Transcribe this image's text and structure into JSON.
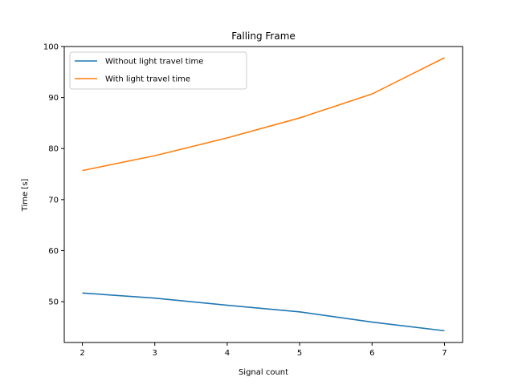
{
  "chart_data": {
    "type": "line",
    "title": "Falling Frame",
    "xlabel": "Signal count",
    "ylabel": "Time [s]",
    "x": [
      2,
      3,
      4,
      5,
      6,
      7
    ],
    "xticks": [
      2,
      3,
      4,
      5,
      6,
      7
    ],
    "yticks": [
      50,
      60,
      70,
      80,
      90,
      100
    ],
    "xlim": [
      1.75,
      7.25
    ],
    "ylim": [
      42.0,
      100.0
    ],
    "grid": false,
    "legend_position": "top-left",
    "series": [
      {
        "name": "Without light travel time",
        "color": "#1f77b4",
        "values": [
          51.7,
          50.7,
          49.3,
          48.0,
          46.0,
          44.3
        ]
      },
      {
        "name": "With light travel time",
        "color": "#ff7f0e",
        "values": [
          75.7,
          78.6,
          82.1,
          86.0,
          90.7,
          97.8
        ]
      }
    ]
  }
}
